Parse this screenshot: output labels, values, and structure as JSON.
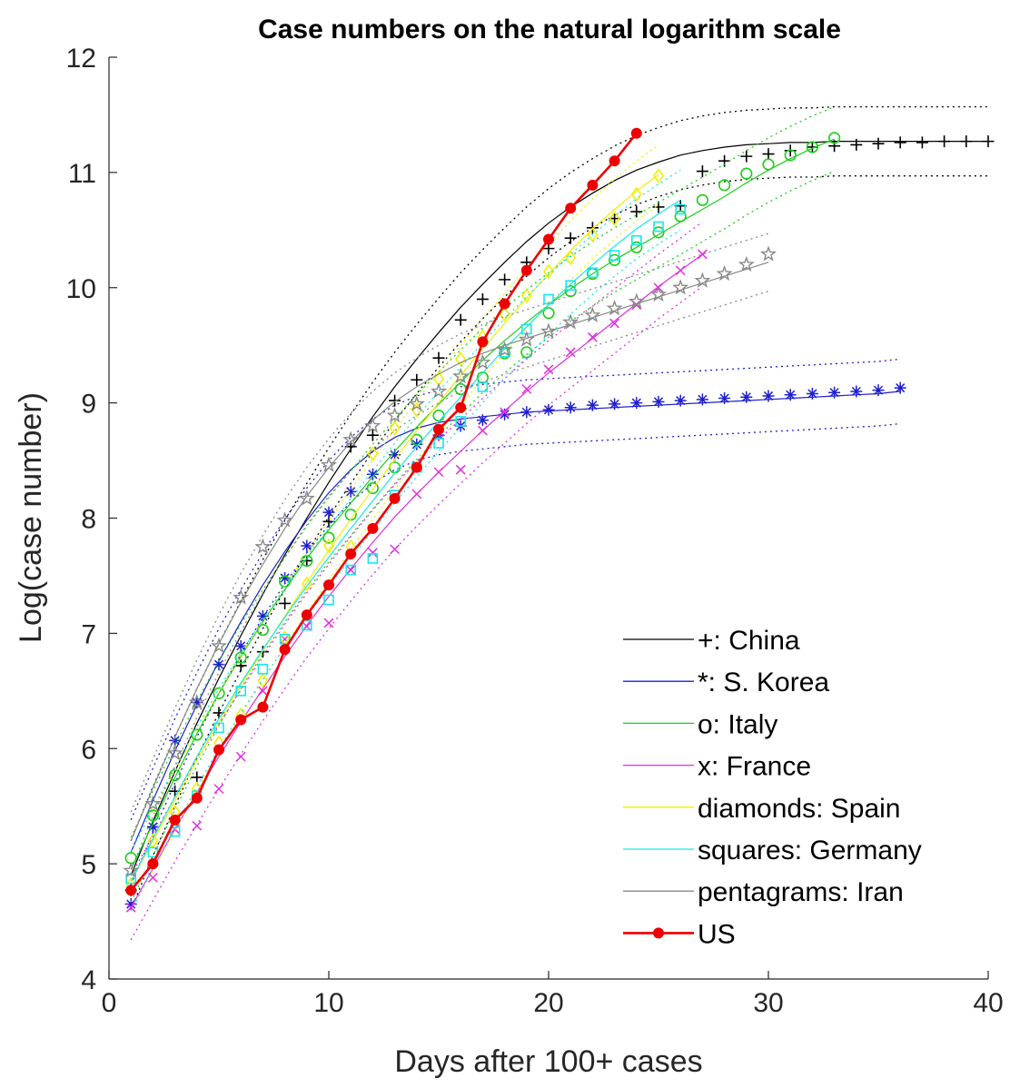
{
  "chart_data": {
    "type": "line",
    "title": "Case numbers on the natural logarithm scale",
    "xlabel": "Days after 100+ cases",
    "ylabel": "Log(case number)",
    "xlim": [
      0,
      40
    ],
    "ylim": [
      4,
      12
    ],
    "xticks": [
      0,
      10,
      20,
      30,
      40
    ],
    "yticks": [
      4,
      5,
      6,
      7,
      8,
      9,
      10,
      11,
      12
    ],
    "grid": false,
    "legend_position": "bottom-right",
    "series": [
      {
        "name": "+: China",
        "color": "#000000",
        "marker": "plus",
        "x": [
          1,
          2,
          3,
          4,
          5,
          6,
          7,
          8,
          9,
          10,
          11,
          12,
          13,
          14,
          15,
          16,
          17,
          18,
          19,
          20,
          21,
          22,
          23,
          24,
          25,
          26,
          27,
          28,
          29,
          30,
          31,
          32,
          33,
          34,
          35,
          36,
          37,
          38,
          39,
          40
        ],
        "y": [
          4.77,
          5.32,
          5.63,
          5.75,
          6.31,
          6.72,
          6.84,
          7.26,
          7.63,
          7.97,
          8.62,
          8.72,
          9.02,
          9.2,
          9.39,
          9.72,
          9.9,
          10.07,
          10.22,
          10.34,
          10.43,
          10.52,
          10.6,
          10.66,
          10.7,
          10.71,
          11.01,
          11.1,
          11.14,
          11.16,
          11.19,
          11.22,
          11.23,
          11.24,
          11.25,
          11.26,
          11.26,
          11.27,
          11.27,
          11.27
        ],
        "fit": [
          4.9,
          5.37,
          5.8,
          6.22,
          6.61,
          6.98,
          7.34,
          7.68,
          8.0,
          8.31,
          8.6,
          8.88,
          9.14,
          9.38,
          9.61,
          9.83,
          10.03,
          10.22,
          10.4,
          10.56,
          10.7,
          10.82,
          10.93,
          11.02,
          11.09,
          11.15,
          11.19,
          11.22,
          11.24,
          11.25,
          11.26,
          11.26,
          11.27,
          11.27,
          11.27,
          11.27,
          11.27,
          11.27,
          11.27,
          11.27
        ],
        "band": 0.3
      },
      {
        "name": "*: S. Korea",
        "color": "#1f1fd0",
        "marker": "asterisk",
        "x": [
          1,
          2,
          3,
          4,
          5,
          6,
          7,
          8,
          9,
          10,
          11,
          12,
          13,
          14,
          15,
          16,
          17,
          18,
          19,
          20,
          21,
          22,
          23,
          24,
          25,
          26,
          27,
          28,
          29,
          30,
          31,
          32,
          33,
          34,
          35,
          36
        ],
        "y": [
          4.65,
          5.32,
          6.07,
          6.4,
          6.73,
          6.89,
          7.15,
          7.48,
          7.76,
          8.05,
          8.23,
          8.38,
          8.55,
          8.64,
          8.72,
          8.8,
          8.85,
          8.9,
          8.92,
          8.94,
          8.96,
          8.98,
          8.99,
          9.0,
          9.01,
          9.02,
          9.03,
          9.04,
          9.05,
          9.06,
          9.07,
          9.08,
          9.09,
          9.1,
          9.11,
          9.13
        ],
        "fit": [
          5.1,
          5.55,
          5.98,
          6.38,
          6.76,
          7.1,
          7.42,
          7.71,
          7.98,
          8.22,
          8.42,
          8.58,
          8.7,
          8.78,
          8.83,
          8.86,
          8.88,
          8.9,
          8.92,
          8.93,
          8.94,
          8.95,
          8.96,
          8.97,
          8.98,
          8.99,
          9.0,
          9.01,
          9.02,
          9.03,
          9.04,
          9.05,
          9.06,
          9.07,
          9.08,
          9.1
        ],
        "band": 0.28
      },
      {
        "name": "o: Italy",
        "color": "#1ccf1c",
        "marker": "circle",
        "x": [
          1,
          2,
          3,
          4,
          5,
          6,
          7,
          8,
          9,
          10,
          11,
          12,
          13,
          14,
          15,
          16,
          17,
          18,
          19,
          20,
          21,
          22,
          23,
          24,
          25,
          26,
          27,
          28,
          29,
          30,
          31,
          32,
          33
        ],
        "y": [
          5.05,
          5.42,
          5.77,
          6.12,
          6.48,
          6.79,
          7.03,
          7.45,
          7.63,
          7.83,
          8.03,
          8.26,
          8.44,
          8.68,
          8.89,
          9.12,
          9.22,
          9.43,
          9.44,
          9.78,
          9.97,
          10.12,
          10.24,
          10.35,
          10.48,
          10.62,
          10.76,
          10.89,
          10.99,
          11.07,
          11.15,
          11.22,
          11.3
        ],
        "fit": [
          4.95,
          5.35,
          5.75,
          6.13,
          6.48,
          6.8,
          7.1,
          7.38,
          7.65,
          7.9,
          8.13,
          8.36,
          8.58,
          8.79,
          8.99,
          9.18,
          9.37,
          9.54,
          9.7,
          9.85,
          9.99,
          10.12,
          10.24,
          10.35,
          10.46,
          10.57,
          10.68,
          10.79,
          10.91,
          11.02,
          11.12,
          11.21,
          11.29
        ],
        "band": 0.28
      },
      {
        "name": "x: France",
        "color": "#e12ee1",
        "marker": "cross",
        "x": [
          1,
          2,
          3,
          4,
          5,
          6,
          7,
          8,
          9,
          10,
          11,
          12,
          13,
          14,
          15,
          16,
          17,
          18,
          19,
          20,
          21,
          22,
          23,
          24,
          25,
          26,
          27
        ],
        "y": [
          4.62,
          4.88,
          5.3,
          5.33,
          5.65,
          5.93,
          6.5,
          6.95,
          7.06,
          7.09,
          7.55,
          7.7,
          7.73,
          8.21,
          8.4,
          8.42,
          8.76,
          8.92,
          9.12,
          9.29,
          9.44,
          9.57,
          9.69,
          9.85,
          10.0,
          10.15,
          10.29
        ],
        "fit": [
          4.62,
          4.96,
          5.3,
          5.62,
          5.93,
          6.23,
          6.52,
          6.8,
          7.07,
          7.32,
          7.56,
          7.79,
          8.01,
          8.21,
          8.4,
          8.58,
          8.76,
          8.93,
          9.1,
          9.26,
          9.41,
          9.56,
          9.71,
          9.86,
          10.01,
          10.15,
          10.29
        ],
        "band": 0.28
      },
      {
        "name": "diamonds: Spain",
        "color": "#f2ee00",
        "marker": "diamond",
        "x": [
          1,
          2,
          3,
          4,
          5,
          6,
          7,
          8,
          9,
          10,
          11,
          12,
          13,
          14,
          15,
          16,
          17,
          18,
          19,
          20,
          21,
          22,
          23,
          24,
          25
        ],
        "y": [
          4.82,
          5.2,
          5.45,
          5.65,
          6.05,
          6.29,
          6.59,
          6.96,
          7.43,
          7.76,
          7.75,
          8.56,
          8.78,
          8.94,
          9.21,
          9.38,
          9.57,
          9.77,
          9.93,
          10.14,
          10.26,
          10.46,
          10.6,
          10.81,
          10.97
        ],
        "fit": [
          4.85,
          5.2,
          5.55,
          5.9,
          6.23,
          6.55,
          6.85,
          7.15,
          7.44,
          7.72,
          7.99,
          8.25,
          8.51,
          8.76,
          9.0,
          9.24,
          9.47,
          9.69,
          9.91,
          10.12,
          10.32,
          10.51,
          10.68,
          10.84,
          10.98
        ],
        "band": 0.26
      },
      {
        "name": "squares: Germany",
        "color": "#19e6ee",
        "marker": "square",
        "x": [
          1,
          2,
          3,
          4,
          5,
          6,
          7,
          8,
          9,
          10,
          11,
          12,
          13,
          14,
          15,
          16,
          17,
          18,
          19,
          20,
          21,
          22,
          23,
          24,
          25,
          26
        ],
        "y": [
          4.87,
          5.1,
          5.28,
          5.59,
          6.18,
          6.5,
          6.69,
          6.95,
          7.07,
          7.29,
          7.55,
          7.65,
          8.2,
          8.44,
          8.65,
          8.84,
          9.14,
          9.44,
          9.64,
          9.9,
          10.02,
          10.13,
          10.28,
          10.41,
          10.53,
          10.68
        ],
        "fit": [
          4.85,
          5.22,
          5.58,
          5.93,
          6.26,
          6.57,
          6.86,
          7.14,
          7.41,
          7.66,
          7.91,
          8.15,
          8.39,
          8.62,
          8.84,
          9.05,
          9.26,
          9.47,
          9.66,
          9.85,
          10.03,
          10.2,
          10.36,
          10.51,
          10.64,
          10.76
        ],
        "band": 0.26
      },
      {
        "name": "pentagrams: Iran",
        "color": "#888888",
        "marker": "pentagram",
        "x": [
          1,
          2,
          3,
          4,
          5,
          6,
          7,
          8,
          9,
          10,
          11,
          12,
          13,
          14,
          15,
          16,
          17,
          18,
          19,
          20,
          21,
          22,
          23,
          24,
          25,
          26,
          27,
          28,
          29,
          30
        ],
        "y": [
          4.94,
          5.52,
          5.96,
          6.4,
          6.89,
          7.31,
          7.75,
          7.98,
          8.17,
          8.46,
          8.68,
          8.8,
          8.89,
          8.99,
          9.1,
          9.23,
          9.35,
          9.46,
          9.55,
          9.62,
          9.7,
          9.76,
          9.82,
          9.88,
          9.94,
          10.0,
          10.06,
          10.12,
          10.2,
          10.29
        ],
        "fit": [
          5.2,
          5.66,
          6.1,
          6.52,
          6.91,
          7.27,
          7.6,
          7.91,
          8.19,
          8.44,
          8.66,
          8.85,
          9.01,
          9.14,
          9.25,
          9.35,
          9.43,
          9.5,
          9.56,
          9.62,
          9.68,
          9.74,
          9.8,
          9.86,
          9.92,
          9.98,
          10.04,
          10.1,
          10.16,
          10.22
        ],
        "band": 0.25
      },
      {
        "name": "US",
        "color": "#ee0000",
        "marker": "dot",
        "x": [
          1,
          2,
          3,
          4,
          5,
          6,
          7,
          8,
          9,
          10,
          11,
          12,
          13,
          14,
          15,
          16,
          17,
          18,
          19,
          20,
          21,
          22,
          23,
          24
        ],
        "y": [
          4.77,
          5.0,
          5.38,
          5.57,
          5.99,
          6.25,
          6.36,
          6.86,
          7.16,
          7.42,
          7.69,
          7.91,
          8.17,
          8.44,
          8.77,
          8.96,
          9.53,
          9.86,
          10.15,
          10.42,
          10.69,
          10.89,
          11.1,
          11.34
        ]
      }
    ]
  }
}
